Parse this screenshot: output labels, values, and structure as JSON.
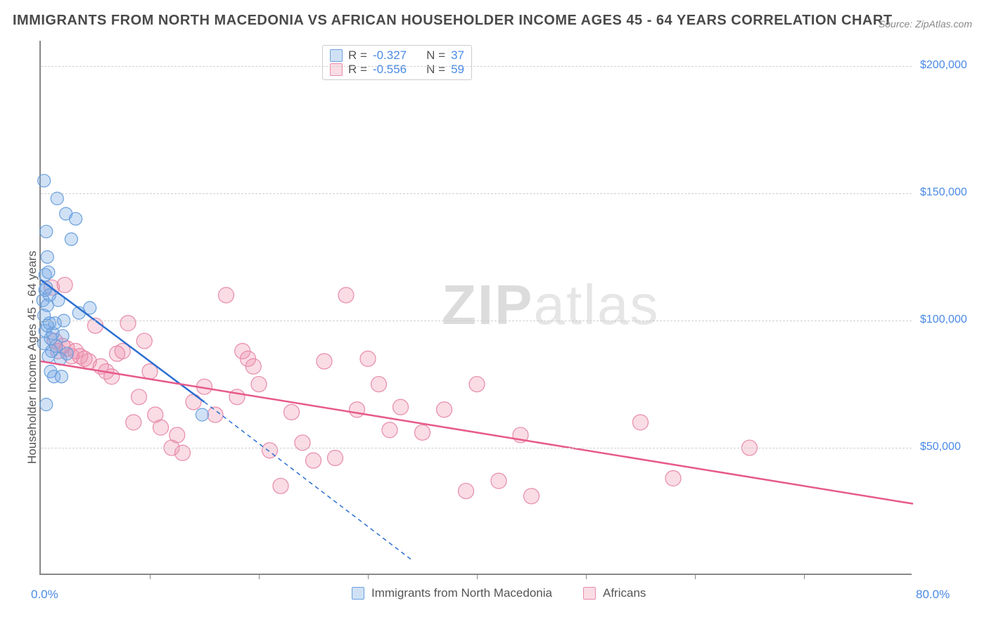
{
  "title": "IMMIGRANTS FROM NORTH MACEDONIA VS AFRICAN HOUSEHOLDER INCOME AGES 45 - 64 YEARS CORRELATION CHART",
  "source": "Source: ZipAtlas.com",
  "watermark": {
    "part1": "ZIP",
    "part2": "atlas"
  },
  "chart": {
    "type": "scatter",
    "background_color": "#ffffff",
    "grid_color": "#d0d0d0",
    "axis_color": "#888888",
    "label_color": "#4a8ae6",
    "title_fontsize": 20,
    "label_fontsize": 17,
    "tick_fontsize": 16,
    "xlim": [
      0,
      80
    ],
    "ylim": [
      0,
      210000
    ],
    "x_axis": {
      "label_left": "0.0%",
      "label_right": "80.0%",
      "tick_positions": [
        10,
        20,
        30,
        40,
        50,
        60,
        70
      ]
    },
    "y_axis": {
      "label": "Householder Income Ages 45 - 64 years",
      "ticks": [
        {
          "value": 50000,
          "label": "$50,000"
        },
        {
          "value": 100000,
          "label": "$100,000"
        },
        {
          "value": 150000,
          "label": "$150,000"
        },
        {
          "value": 200000,
          "label": "$200,000"
        }
      ]
    },
    "series": [
      {
        "id": "s1",
        "name": "Immigrants from North Macedonia",
        "R": "-0.327",
        "N": "37",
        "marker_fill": "rgba(120,170,230,0.35)",
        "marker_stroke": "#6aa0dd",
        "marker_radius": 9,
        "line_color": "#2c6fd1",
        "line_width": 2.5,
        "extrap_dash": "6,5",
        "trend_solid": {
          "x1": 0,
          "y1": 116000,
          "x2": 15,
          "y2": 68000
        },
        "trend_dashed": {
          "x1": 15,
          "y1": 68000,
          "x2": 34,
          "y2": 6000
        },
        "points": [
          {
            "x": 0.3,
            "y": 155000
          },
          {
            "x": 0.5,
            "y": 135000
          },
          {
            "x": 0.6,
            "y": 125000
          },
          {
            "x": 0.4,
            "y": 118000
          },
          {
            "x": 0.5,
            "y": 113000
          },
          {
            "x": 0.7,
            "y": 119000
          },
          {
            "x": 0.2,
            "y": 108000
          },
          {
            "x": 0.3,
            "y": 102000
          },
          {
            "x": 0.6,
            "y": 106000
          },
          {
            "x": 0.4,
            "y": 96000
          },
          {
            "x": 0.8,
            "y": 99000
          },
          {
            "x": 1.5,
            "y": 148000
          },
          {
            "x": 2.0,
            "y": 94000
          },
          {
            "x": 2.3,
            "y": 142000
          },
          {
            "x": 2.8,
            "y": 132000
          },
          {
            "x": 3.2,
            "y": 140000
          },
          {
            "x": 1.0,
            "y": 88000
          },
          {
            "x": 1.4,
            "y": 90000
          },
          {
            "x": 1.8,
            "y": 85000
          },
          {
            "x": 0.9,
            "y": 80000
          },
          {
            "x": 1.2,
            "y": 78000
          },
          {
            "x": 0.5,
            "y": 67000
          },
          {
            "x": 1.1,
            "y": 95000
          },
          {
            "x": 1.6,
            "y": 108000
          },
          {
            "x": 2.1,
            "y": 100000
          },
          {
            "x": 3.5,
            "y": 103000
          },
          {
            "x": 4.5,
            "y": 105000
          },
          {
            "x": 0.9,
            "y": 93000
          },
          {
            "x": 1.3,
            "y": 99000
          },
          {
            "x": 0.7,
            "y": 86000
          },
          {
            "x": 0.3,
            "y": 91000
          },
          {
            "x": 14.8,
            "y": 63000
          },
          {
            "x": 1.9,
            "y": 78000
          },
          {
            "x": 2.4,
            "y": 87000
          },
          {
            "x": 0.4,
            "y": 112000
          },
          {
            "x": 0.6,
            "y": 98000
          },
          {
            "x": 0.8,
            "y": 110000
          }
        ]
      },
      {
        "id": "s2",
        "name": "Africans",
        "R": "-0.556",
        "N": "59",
        "marker_fill": "rgba(240,140,170,0.30)",
        "marker_stroke": "#e78bab",
        "marker_radius": 11,
        "line_color": "#e75a8a",
        "line_width": 2.5,
        "trend_solid": {
          "x1": 0,
          "y1": 84000,
          "x2": 80,
          "y2": 28000
        },
        "points": [
          {
            "x": 1.0,
            "y": 113000
          },
          {
            "x": 1.3,
            "y": 92000
          },
          {
            "x": 1.6,
            "y": 88000
          },
          {
            "x": 2.0,
            "y": 90000
          },
          {
            "x": 2.4,
            "y": 89000
          },
          {
            "x": 2.8,
            "y": 86000
          },
          {
            "x": 3.2,
            "y": 88000
          },
          {
            "x": 3.6,
            "y": 86000
          },
          {
            "x": 4.0,
            "y": 85000
          },
          {
            "x": 4.4,
            "y": 84000
          },
          {
            "x": 5.0,
            "y": 98000
          },
          {
            "x": 5.5,
            "y": 82000
          },
          {
            "x": 6.0,
            "y": 80000
          },
          {
            "x": 6.5,
            "y": 78000
          },
          {
            "x": 7.0,
            "y": 87000
          },
          {
            "x": 7.5,
            "y": 88000
          },
          {
            "x": 8.0,
            "y": 99000
          },
          {
            "x": 8.5,
            "y": 60000
          },
          {
            "x": 9.0,
            "y": 70000
          },
          {
            "x": 9.5,
            "y": 92000
          },
          {
            "x": 10.0,
            "y": 80000
          },
          {
            "x": 10.5,
            "y": 63000
          },
          {
            "x": 11.0,
            "y": 58000
          },
          {
            "x": 12.0,
            "y": 50000
          },
          {
            "x": 12.5,
            "y": 55000
          },
          {
            "x": 13.0,
            "y": 48000
          },
          {
            "x": 14.0,
            "y": 68000
          },
          {
            "x": 15.0,
            "y": 74000
          },
          {
            "x": 16.0,
            "y": 63000
          },
          {
            "x": 17.0,
            "y": 110000
          },
          {
            "x": 18.0,
            "y": 70000
          },
          {
            "x": 18.5,
            "y": 88000
          },
          {
            "x": 19.0,
            "y": 85000
          },
          {
            "x": 19.5,
            "y": 82000
          },
          {
            "x": 20.0,
            "y": 75000
          },
          {
            "x": 21.0,
            "y": 49000
          },
          {
            "x": 22.0,
            "y": 35000
          },
          {
            "x": 23.0,
            "y": 64000
          },
          {
            "x": 24.0,
            "y": 52000
          },
          {
            "x": 25.0,
            "y": 45000
          },
          {
            "x": 26.0,
            "y": 84000
          },
          {
            "x": 27.0,
            "y": 46000
          },
          {
            "x": 28.0,
            "y": 110000
          },
          {
            "x": 29.0,
            "y": 65000
          },
          {
            "x": 30.0,
            "y": 85000
          },
          {
            "x": 31.0,
            "y": 75000
          },
          {
            "x": 32.0,
            "y": 57000
          },
          {
            "x": 33.0,
            "y": 66000
          },
          {
            "x": 35.0,
            "y": 56000
          },
          {
            "x": 37.0,
            "y": 65000
          },
          {
            "x": 39.0,
            "y": 33000
          },
          {
            "x": 40.0,
            "y": 75000
          },
          {
            "x": 42.0,
            "y": 37000
          },
          {
            "x": 44.0,
            "y": 55000
          },
          {
            "x": 45.0,
            "y": 31000
          },
          {
            "x": 55.0,
            "y": 60000
          },
          {
            "x": 58.0,
            "y": 38000
          },
          {
            "x": 65.0,
            "y": 50000
          },
          {
            "x": 2.2,
            "y": 114000
          }
        ]
      }
    ]
  },
  "legend_top": {
    "R_label": "R =",
    "N_label": "N ="
  },
  "legend_bottom": [
    {
      "swatch_fill": "rgba(120,170,230,0.35)",
      "swatch_stroke": "#6aa0dd",
      "label_key": "chart.series.0.name"
    },
    {
      "swatch_fill": "rgba(240,140,170,0.30)",
      "swatch_stroke": "#e78bab",
      "label_key": "chart.series.1.name"
    }
  ]
}
